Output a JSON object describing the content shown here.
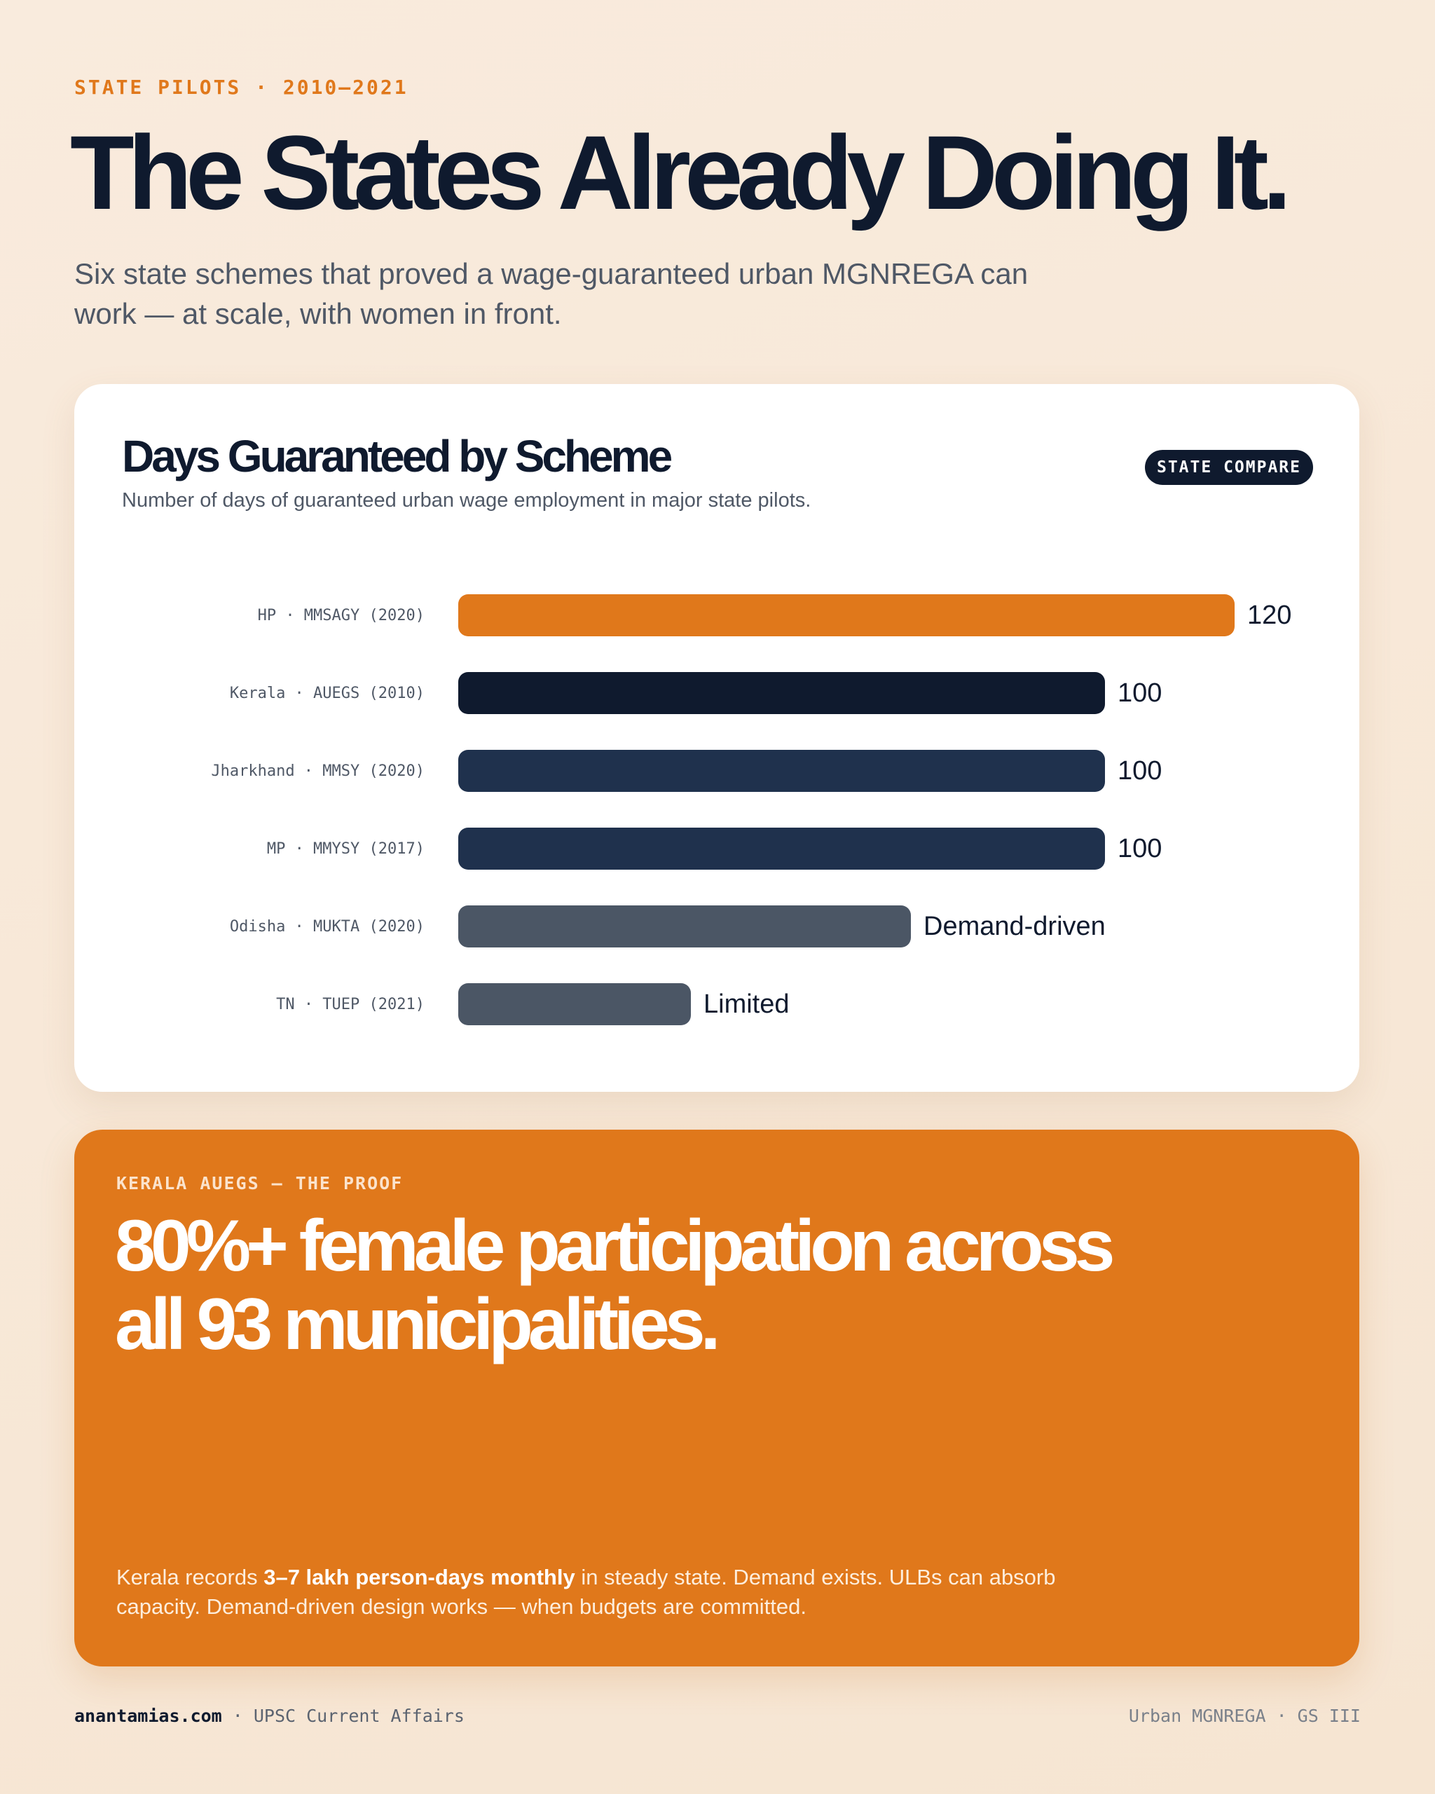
{
  "header": {
    "eyebrow": "STATE PILOTS · 2010–2021",
    "title": "The States Already Doing It.",
    "subtitle": "Six state schemes that proved a wage-guaranteed urban MGNREGA can work — at scale, with women in front."
  },
  "card": {
    "title": "Days Guaranteed by Scheme",
    "subtitle": "Number of days of guaranteed urban wage employment in major state pilots.",
    "badge": "STATE COMPARE"
  },
  "chart_data": {
    "type": "bar",
    "orientation": "horizontal",
    "title": "Days Guaranteed by Scheme",
    "subtitle": "Number of days of guaranteed urban wage employment in major state pilots.",
    "categories": [
      "HP · MMSAGY (2020)",
      "Kerala · AUEGS (2010)",
      "Jharkhand · MMSY (2020)",
      "MP · MMYSY (2017)",
      "Odisha · MUKTA (2020)",
      "TN · TUEP (2021)"
    ],
    "values": [
      120,
      100,
      100,
      100,
      70,
      36
    ],
    "value_labels": [
      "120",
      "100",
      "100",
      "100",
      "Demand-driven",
      "Limited"
    ],
    "bar_colors": [
      "#e0781b",
      "#0f1a2e",
      "#1f314d",
      "#1f314d",
      "#4b5665",
      "#4b5665"
    ],
    "xlim": [
      0,
      120
    ],
    "grid": false,
    "legend": "none"
  },
  "proof": {
    "eyebrow": "KERALA AUEGS — THE PROOF",
    "headline_line1": "80%+ female participation across",
    "headline_line2": "all 93 municipalities.",
    "body_pre": "Kerala records ",
    "body_bold": "3–7 lakh person-days monthly",
    "body_post": " in steady state. Demand exists. ULBs can absorb capacity. Demand-driven design works — when budgets are committed."
  },
  "footer": {
    "site": "anantamias.com",
    "separator": " · ",
    "tagline": "UPSC Current Affairs",
    "right": "Urban MGNREGA · GS III"
  },
  "colors": {
    "accent": "#e0781b",
    "navy": "#0f1a2e",
    "slate": "#4b5665",
    "background": "#f8e9d9"
  }
}
